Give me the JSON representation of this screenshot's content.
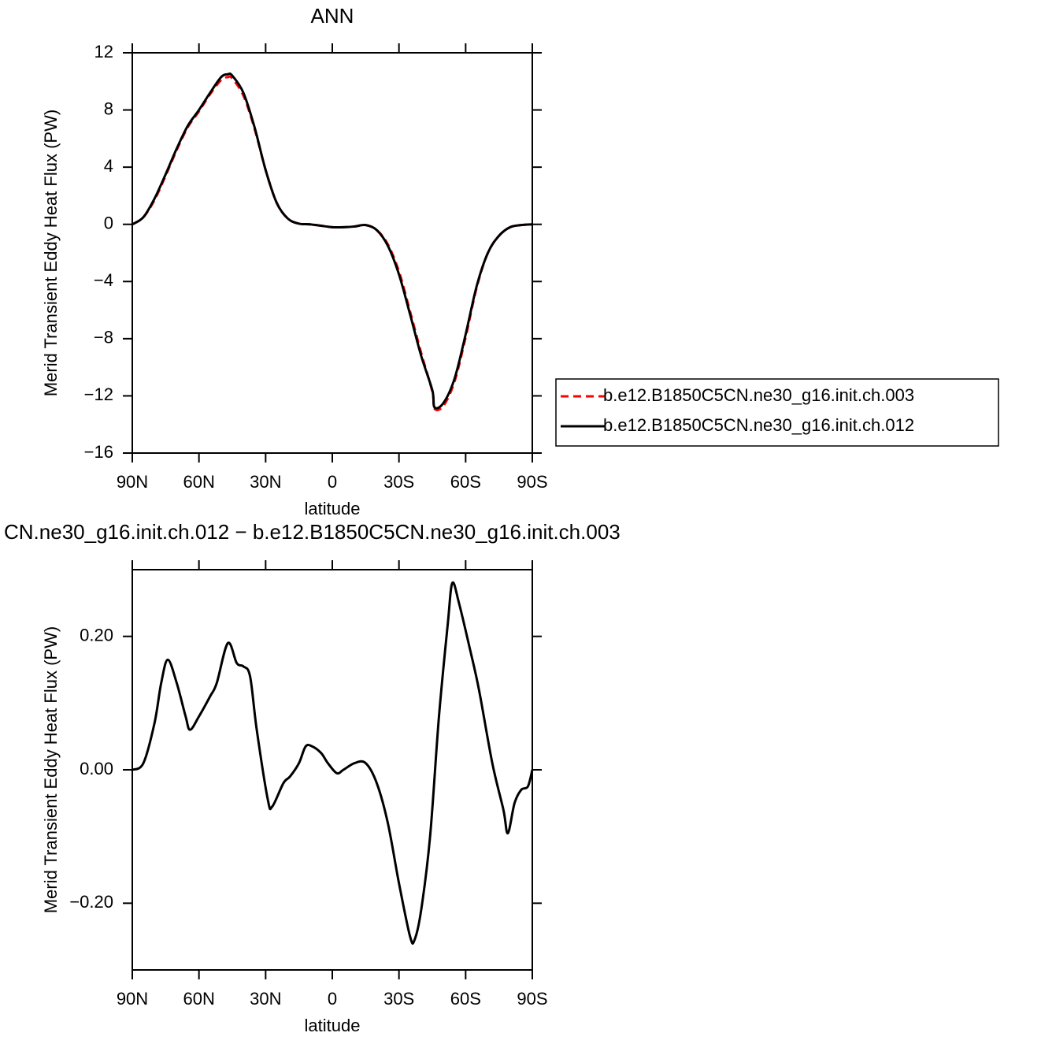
{
  "chart_data": [
    {
      "type": "line",
      "title": "ANN",
      "xlabel": "latitude",
      "ylabel": "Merid Transient Eddy Heat Flux (PW)",
      "x": [
        90,
        85,
        80,
        75,
        70,
        65,
        60,
        55,
        50,
        47,
        45,
        40,
        35,
        30,
        25,
        20,
        15,
        10,
        5,
        0,
        -5,
        -10,
        -15,
        -20,
        -25,
        -30,
        -35,
        -40,
        -45,
        -46,
        -50,
        -55,
        -60,
        -65,
        -70,
        -75,
        -80,
        -85,
        -90
      ],
      "series": [
        {
          "name": "b.e12.B1850C5CN.ne30_g16.init.ch.003",
          "color": "#ff0000",
          "dash": true,
          "values": [
            0,
            0.5,
            1.7,
            3.4,
            5.2,
            6.8,
            7.9,
            9.1,
            10.1,
            10.3,
            10.2,
            9.0,
            6.7,
            3.8,
            1.5,
            0.4,
            0.05,
            0.0,
            -0.1,
            -0.2,
            -0.2,
            -0.15,
            -0.05,
            -0.4,
            -1.4,
            -3.3,
            -6.1,
            -9.0,
            -11.7,
            -12.9,
            -12.7,
            -11.0,
            -7.9,
            -4.4,
            -2.0,
            -0.8,
            -0.2,
            -0.05,
            0
          ]
        },
        {
          "name": "b.e12.B1850C5CN.ne30_g16.init.ch.012",
          "color": "#000000",
          "dash": false,
          "values": [
            0,
            0.5,
            1.8,
            3.5,
            5.3,
            6.9,
            8.0,
            9.2,
            10.3,
            10.5,
            10.4,
            9.2,
            6.8,
            3.8,
            1.5,
            0.4,
            0.05,
            0.0,
            -0.1,
            -0.2,
            -0.2,
            -0.15,
            -0.05,
            -0.4,
            -1.5,
            -3.5,
            -6.3,
            -9.2,
            -11.6,
            -12.8,
            -12.5,
            -10.8,
            -7.7,
            -4.3,
            -2.0,
            -0.8,
            -0.2,
            -0.05,
            0
          ]
        }
      ],
      "xlim": [
        90,
        -90
      ],
      "xticks": [
        {
          "value": 90,
          "label": "90N"
        },
        {
          "value": 60,
          "label": "60N"
        },
        {
          "value": 30,
          "label": "30N"
        },
        0,
        {
          "value": -30,
          "label": "30S"
        },
        {
          "value": -60,
          "label": "60S"
        },
        {
          "value": -90,
          "label": "90S"
        }
      ],
      "ylim": [
        -16,
        12
      ],
      "yticks": [
        {
          "value": -16,
          "label": "−16"
        },
        {
          "value": -12,
          "label": "−12"
        },
        {
          "value": -8,
          "label": "−8"
        },
        {
          "value": -4,
          "label": "−4"
        },
        0,
        4,
        8,
        12
      ],
      "legend": "right"
    },
    {
      "type": "line",
      "title": "CN.ne30_g16.init.ch.012 − b.e12.B1850C5CN.ne30_g16.init.ch.003",
      "xlabel": "latitude",
      "ylabel": "Merid Transient Eddy Heat Flux (PW)",
      "x": [
        90,
        85,
        80,
        77,
        74,
        70,
        66,
        64,
        60,
        55,
        52,
        47,
        43,
        40,
        37,
        34,
        29,
        27,
        22,
        19,
        15,
        12,
        9,
        5,
        2,
        -2,
        -5,
        -10,
        -15,
        -20,
        -25,
        -30,
        -35,
        -37,
        -40,
        -44,
        -48,
        -52,
        -54,
        -57,
        -62,
        -66,
        -72,
        -77,
        -79,
        -82,
        -85,
        -88,
        -90
      ],
      "series": [
        {
          "color": "#000000",
          "dash": false,
          "values": [
            0,
            0.01,
            0.07,
            0.13,
            0.165,
            0.13,
            0.08,
            0.06,
            0.08,
            0.11,
            0.13,
            0.19,
            0.16,
            0.155,
            0.14,
            0.06,
            -0.045,
            -0.055,
            -0.02,
            -0.01,
            0.01,
            0.035,
            0.035,
            0.025,
            0.01,
            -0.005,
            0.0,
            0.01,
            0.01,
            -0.02,
            -0.08,
            -0.17,
            -0.25,
            -0.255,
            -0.21,
            -0.1,
            0.08,
            0.22,
            0.28,
            0.25,
            0.18,
            0.12,
            0.01,
            -0.06,
            -0.095,
            -0.05,
            -0.03,
            -0.025,
            0
          ]
        }
      ],
      "xlim": [
        90,
        -90
      ],
      "xticks": [
        {
          "value": 90,
          "label": "90N"
        },
        {
          "value": 60,
          "label": "60N"
        },
        {
          "value": 30,
          "label": "30N"
        },
        0,
        {
          "value": -30,
          "label": "30S"
        },
        {
          "value": -60,
          "label": "60S"
        },
        {
          "value": -90,
          "label": "90S"
        }
      ],
      "ylim": [
        -0.3,
        0.3
      ],
      "yticks": [
        {
          "value": -0.2,
          "label": "−0.20"
        },
        {
          "value": 0,
          "label": "0.00"
        },
        {
          "value": 0.2,
          "label": "0.20"
        }
      ]
    }
  ]
}
